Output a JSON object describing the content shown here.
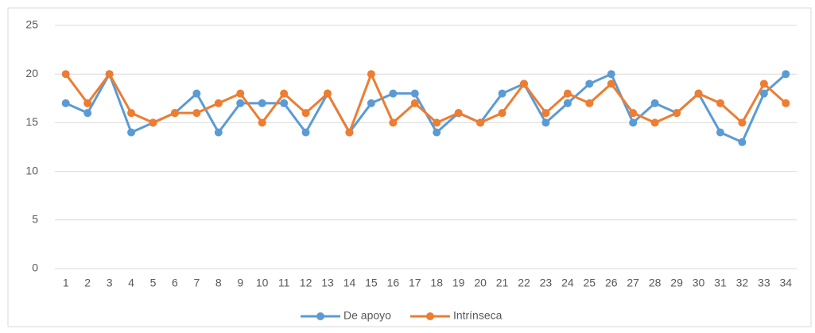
{
  "chart_data": {
    "type": "line",
    "categories": [
      "1",
      "2",
      "3",
      "4",
      "5",
      "6",
      "7",
      "8",
      "9",
      "10",
      "11",
      "12",
      "13",
      "14",
      "15",
      "16",
      "17",
      "18",
      "19",
      "20",
      "21",
      "22",
      "23",
      "24",
      "25",
      "26",
      "27",
      "28",
      "29",
      "30",
      "31",
      "32",
      "33",
      "34"
    ],
    "series": [
      {
        "name": "De apoyo",
        "color": "#5b9bd5",
        "values": [
          17,
          16,
          20,
          14,
          15,
          16,
          18,
          14,
          17,
          17,
          17,
          14,
          18,
          14,
          17,
          18,
          18,
          14,
          16,
          15,
          18,
          19,
          15,
          17,
          19,
          20,
          15,
          17,
          16,
          18,
          14,
          13,
          18,
          20
        ]
      },
      {
        "name": "Intrínseca",
        "color": "#ed7d31",
        "values": [
          20,
          17,
          20,
          16,
          15,
          16,
          16,
          17,
          18,
          15,
          18,
          16,
          18,
          14,
          20,
          15,
          17,
          15,
          16,
          15,
          16,
          19,
          16,
          18,
          17,
          19,
          16,
          15,
          16,
          18,
          17,
          15,
          19,
          17
        ]
      }
    ],
    "ylim": [
      0,
      25
    ],
    "yticks": [
      0,
      5,
      10,
      15,
      20,
      25
    ],
    "grid": true,
    "legend": "bottom"
  }
}
